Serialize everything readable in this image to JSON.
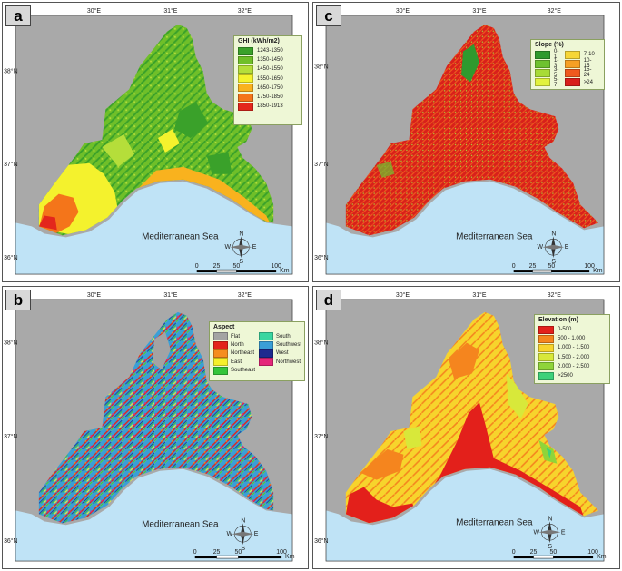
{
  "common": {
    "lon_labels": [
      "30°E",
      "31°E",
      "32°E"
    ],
    "lat_labels": [
      "38°N",
      "37°N",
      "36°N"
    ],
    "sea_label": "Mediterranean Sea",
    "compass": {
      "n": "N",
      "s": "S",
      "e": "E",
      "w": "W"
    },
    "scale": {
      "ticks": [
        "0",
        "25",
        "50",
        "100"
      ],
      "unit": "Km"
    }
  },
  "colors": {
    "sea": "#bfe3f6",
    "land_bg": "#a9a9a9",
    "legend_bg": "#eef7d6"
  },
  "panels": {
    "a": {
      "letter": "a",
      "legend_title": "GHI (kWh/m2)",
      "classes": [
        {
          "label": "1243-1350",
          "color": "#3aa12a"
        },
        {
          "label": "1350-1450",
          "color": "#6fbf29"
        },
        {
          "label": "1450-1550",
          "color": "#b5de3a"
        },
        {
          "label": "1550-1650",
          "color": "#f4f22d"
        },
        {
          "label": "1650-1750",
          "color": "#f9b21e"
        },
        {
          "label": "1750-1850",
          "color": "#f4751a"
        },
        {
          "label": "1850-1913",
          "color": "#e3261c"
        }
      ]
    },
    "b": {
      "letter": "b",
      "legend_title": "Aspect",
      "classes_col1": [
        {
          "label": "Flat",
          "color": "#a3a3a3"
        },
        {
          "label": "North",
          "color": "#e3231b"
        },
        {
          "label": "Northeast",
          "color": "#f58d1e"
        },
        {
          "label": "East",
          "color": "#f6f02a"
        },
        {
          "label": "Southeast",
          "color": "#35c53a"
        }
      ],
      "classes_col2": [
        {
          "label": "South",
          "color": "#3ad6a0"
        },
        {
          "label": "Southwest",
          "color": "#3a9fd6"
        },
        {
          "label": "West",
          "color": "#1d2a8f"
        },
        {
          "label": "Northwest",
          "color": "#e4267a"
        }
      ]
    },
    "c": {
      "letter": "c",
      "legend_title": "Slope (%)",
      "classes_col1": [
        {
          "label": "0-1",
          "color": "#2f9a2e"
        },
        {
          "label": "1-3",
          "color": "#6ec22f"
        },
        {
          "label": "3-5",
          "color": "#a8db36"
        },
        {
          "label": "5-7",
          "color": "#e2f23d"
        }
      ],
      "classes_col2": [
        {
          "label": "7-10",
          "color": "#f6d636"
        },
        {
          "label": "10-15",
          "color": "#f6a024"
        },
        {
          "label": "15-24",
          "color": "#ef5a1e"
        },
        {
          "label": ">24",
          "color": "#d8201b"
        }
      ]
    },
    "d": {
      "letter": "d",
      "legend_title": "Elevation (m)",
      "classes": [
        {
          "label": "0-500",
          "color": "#e3201b"
        },
        {
          "label": "500 - 1.000",
          "color": "#f5851e"
        },
        {
          "label": "1.000 - 1.500",
          "color": "#f7d42c"
        },
        {
          "label": "1.500 - 2.000",
          "color": "#d8e83a"
        },
        {
          "label": "2.000 - 2.500",
          "color": "#8fd43a"
        },
        {
          "label": ">2500",
          "color": "#3dd17a"
        }
      ]
    }
  }
}
